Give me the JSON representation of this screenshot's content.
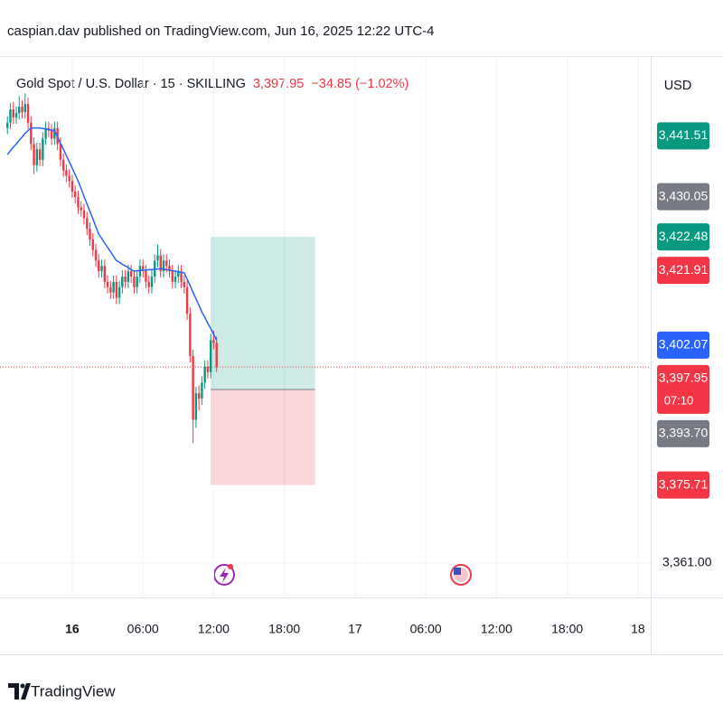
{
  "chart_data": {
    "type": "candlestick",
    "publisher": "caspian.dav published on TradingView.com, Jun 16, 2025 12:22 UTC-4",
    "title": "Gold Spot / U.S. Dollar · 15 · SKILLING",
    "last_price": "3,397.95",
    "change": "−34.85 (−1.02%)",
    "currency": "USD",
    "brand": "TradingView",
    "up_color": "#089981",
    "down_color": "#f23645",
    "x": [
      -5.5,
      -5.25,
      -5,
      -4.75,
      -4.5,
      -4.25,
      -4,
      -3.75,
      -3.5,
      -3.25,
      -3,
      -2.75,
      -2.5,
      -2.25,
      -2,
      -1.75,
      -1.5,
      -1.25,
      -1,
      -0.75,
      -0.5,
      -0.25,
      0,
      0.25,
      0.5,
      0.75,
      1,
      1.25,
      1.5,
      1.75,
      2,
      2.25,
      2.5,
      2.75,
      3,
      3.25,
      3.5,
      3.75,
      4,
      4.25,
      4.5,
      4.75,
      5,
      5.25,
      5.5,
      5.75,
      6,
      6.25,
      6.5,
      6.75,
      7,
      7.25,
      7.5,
      7.75,
      8,
      8.25,
      8.5,
      8.75,
      9,
      9.25,
      9.5,
      9.75,
      10,
      10.25,
      10.5,
      10.75,
      11,
      11.25,
      11.5,
      11.75,
      12,
      12.25
    ],
    "open": [
      3443,
      3444,
      3446.5,
      3445,
      3445.8,
      3447,
      3446,
      3447.5,
      3444,
      3440,
      3436,
      3439,
      3437,
      3441,
      3443,
      3442.5,
      3441,
      3443,
      3440,
      3437,
      3435,
      3434,
      3433,
      3431,
      3430,
      3428,
      3427.5,
      3426,
      3424,
      3422,
      3420,
      3418,
      3416,
      3417,
      3414,
      3413,
      3412,
      3414,
      3411,
      3413,
      3415,
      3414,
      3416,
      3415,
      3413,
      3415,
      3417,
      3416,
      3414,
      3413,
      3415,
      3418,
      3419,
      3416,
      3418,
      3417,
      3416,
      3414,
      3415,
      3416,
      3414,
      3413,
      3408,
      3400,
      3388,
      3393,
      3392,
      3395,
      3398,
      3397,
      3403,
      3402.5
    ],
    "high": [
      3445.2,
      3447.7,
      3447.9,
      3447,
      3449,
      3448.2,
      3449.5,
      3448.7,
      3445.2,
      3441.2,
      3440.2,
      3440.2,
      3442.2,
      3444.2,
      3444.2,
      3443.7,
      3444.2,
      3444.2,
      3441.2,
      3438.2,
      3436.2,
      3435.2,
      3434.2,
      3432.2,
      3431.2,
      3429.2,
      3428.7,
      3427.2,
      3425.2,
      3423.2,
      3421.2,
      3419.2,
      3418.2,
      3418.2,
      3415.2,
      3414.2,
      3415.2,
      3415.2,
      3414.2,
      3416.2,
      3416.2,
      3417.2,
      3417.2,
      3416.2,
      3416.2,
      3418.2,
      3418.2,
      3417.2,
      3415.2,
      3416.2,
      3419.2,
      3421,
      3420.2,
      3419.2,
      3419.2,
      3418.2,
      3417.2,
      3416.2,
      3417.2,
      3417.2,
      3415.2,
      3414.2,
      3409.2,
      3401.2,
      3394.2,
      3394.5,
      3396.2,
      3399.2,
      3399.2,
      3404.2,
      3404.8,
      3403.7
    ],
    "low": [
      3441.8,
      3442.8,
      3443.8,
      3443.8,
      3444.6,
      3444.8,
      3444.8,
      3442.8,
      3438.8,
      3434.3,
      3434.8,
      3435.8,
      3435.8,
      3439.8,
      3441.3,
      3439.8,
      3439.8,
      3438.8,
      3435.8,
      3433.8,
      3432.8,
      3431.8,
      3429.8,
      3428.8,
      3426.8,
      3426.3,
      3424.8,
      3422.8,
      3420.8,
      3418.8,
      3416.8,
      3414.8,
      3414.8,
      3412.8,
      3411.8,
      3410.8,
      3410.8,
      3409.8,
      3409.8,
      3411.8,
      3412.8,
      3412.8,
      3413.8,
      3411.8,
      3411.8,
      3413.8,
      3414.8,
      3412.8,
      3411.8,
      3411.8,
      3413.8,
      3416.8,
      3414.8,
      3414.8,
      3415.8,
      3414.8,
      3412.8,
      3412.8,
      3413.8,
      3412.8,
      3411.8,
      3406.8,
      3398.8,
      3383.6,
      3386.5,
      3389.8,
      3390.8,
      3393.8,
      3395.8,
      3395.8,
      3401.3,
      3397
    ],
    "close": [
      3444,
      3446.5,
      3445,
      3445.8,
      3447,
      3446,
      3447.5,
      3444,
      3440,
      3436,
      3439,
      3437,
      3441,
      3443,
      3442.5,
      3441,
      3443,
      3440,
      3437,
      3435,
      3434,
      3433,
      3431,
      3430,
      3428,
      3427.5,
      3426,
      3424,
      3422,
      3420,
      3418,
      3416,
      3417,
      3414,
      3413,
      3412,
      3414,
      3411,
      3413,
      3415,
      3414,
      3416,
      3415,
      3413,
      3415,
      3417,
      3416,
      3414,
      3413,
      3415,
      3418,
      3419,
      3416,
      3418,
      3417,
      3416,
      3414,
      3415,
      3416,
      3414,
      3413,
      3408,
      3400,
      3388,
      3393,
      3392,
      3395,
      3398,
      3397,
      3403,
      3402.5,
      3397.95
    ],
    "ma": {
      "color": "#2962ff",
      "values": [
        3438,
        3438.7,
        3439.4,
        3440,
        3440.7,
        3441.3,
        3442,
        3442.5,
        3443,
        3443,
        3443,
        3443,
        3442.9,
        3442.8,
        3442.7,
        3442.6,
        3442.5,
        3441.3,
        3440.1,
        3439,
        3437.8,
        3436.6,
        3435.4,
        3434.2,
        3433,
        3431.6,
        3430.1,
        3428.7,
        3427.3,
        3425.9,
        3424.4,
        3423,
        3422.2,
        3421.3,
        3420.5,
        3419.7,
        3418.8,
        3418,
        3417.7,
        3417.3,
        3417,
        3416.7,
        3416.3,
        3416,
        3416.1,
        3416.1,
        3416.2,
        3416.2,
        3416.3,
        3416.3,
        3416.4,
        3416.4,
        3416.5,
        3416.4,
        3416.3,
        3416.2,
        3416.1,
        3416,
        3415.9,
        3415.8,
        3415.7,
        3414.5,
        3413.3,
        3412,
        3410.8,
        3409.6,
        3408.3,
        3407.3,
        3406.2,
        3405.2,
        3404.1,
        3403
      ]
    },
    "position": {
      "entry": 3393.7,
      "target": 3422.48,
      "stop": 3375.71,
      "x_start": 11.75,
      "x_end": 20.6
    },
    "price_labels": [
      {
        "value": 3441.51,
        "label": "3,441.51",
        "color": "#089981"
      },
      {
        "value": 3430.05,
        "label": "3,430.05",
        "color": "#787b86"
      },
      {
        "value": 3422.48,
        "label": "3,422.48",
        "color": "#089981"
      },
      {
        "value": 3421.91,
        "label": "3,421.91",
        "color": "#f23645"
      },
      {
        "value": 3402.07,
        "label": "3,402.07",
        "color": "#2962ff"
      },
      {
        "value": 3397.95,
        "label": "3,397.95",
        "color": "#f23645",
        "countdown": "07:10"
      },
      {
        "value": 3393.7,
        "label": "3,393.70",
        "color": "#787b86"
      },
      {
        "value": 3375.71,
        "label": "3,375.71",
        "color": "#f23645"
      }
    ],
    "xlim": [
      -6.13,
      49.08
    ],
    "xticks": [
      {
        "value": 0,
        "label": "16"
      },
      {
        "value": 6,
        "label": "06:00"
      },
      {
        "value": 12,
        "label": "12:00"
      },
      {
        "value": 18,
        "label": "18:00"
      },
      {
        "value": 24,
        "label": "17"
      },
      {
        "value": 30,
        "label": "06:00"
      },
      {
        "value": 36,
        "label": "12:00"
      },
      {
        "value": 42,
        "label": "18:00"
      },
      {
        "value": 48,
        "label": "18"
      }
    ],
    "ylim": [
      3354.7,
      3455.2
    ],
    "yticks": [
      {
        "value": 3361,
        "label": "3,361.00"
      }
    ],
    "grid": true
  }
}
